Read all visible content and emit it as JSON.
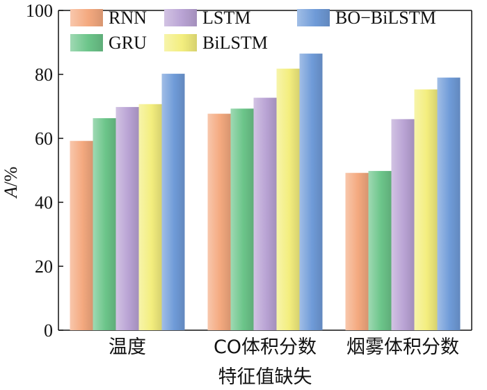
{
  "chart_data": {
    "type": "bar",
    "title": "",
    "xlabel": "特征值缺失",
    "ylabel_italic": "A",
    "ylabel_suffix": "/%",
    "ylim": [
      0,
      100
    ],
    "yticks": [
      0,
      20,
      40,
      60,
      80,
      100
    ],
    "grid": false,
    "legend_position": "top",
    "categories": [
      "温度",
      "CO体积分数",
      "烟雾体积分数"
    ],
    "series": [
      {
        "name": "RNN",
        "color": "#f4a97f",
        "values": [
          59.2,
          67.7,
          49.2
        ]
      },
      {
        "name": "GRU",
        "color": "#6cc58a",
        "values": [
          66.3,
          69.3,
          49.8
        ]
      },
      {
        "name": "LSTM",
        "color": "#b9a3d4",
        "values": [
          69.8,
          72.7,
          66.0
        ]
      },
      {
        "name": "BiLSTM",
        "color": "#f3ee7e",
        "values": [
          70.7,
          81.8,
          75.3
        ]
      },
      {
        "name": "BO−BiLSTM",
        "color": "#6f9bd8",
        "values": [
          80.2,
          86.5,
          79.0
        ]
      }
    ]
  }
}
